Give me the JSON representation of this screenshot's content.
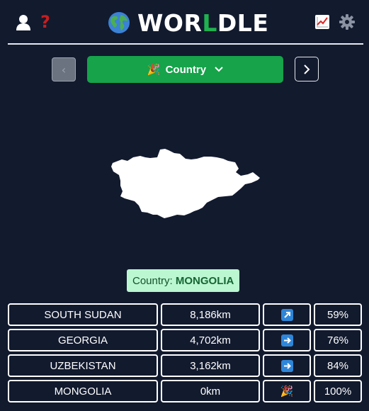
{
  "app": {
    "title_prefix": "WOR",
    "title_accent": "L",
    "title_suffix": "DLE",
    "help_symbol": "?"
  },
  "mode": {
    "label": "Country",
    "prev_symbol": "‹"
  },
  "answer": {
    "prefix": "Country:",
    "value": "MONGOLIA"
  },
  "guesses": [
    {
      "name": "SOUTH SUDAN",
      "distance": "8,186km",
      "direction": "north-east",
      "percent": "59%"
    },
    {
      "name": "GEORGIA",
      "distance": "4,702km",
      "direction": "east",
      "percent": "76%"
    },
    {
      "name": "UZBEKISTAN",
      "distance": "3,162km",
      "direction": "east",
      "percent": "84%"
    },
    {
      "name": "MONGOLIA",
      "distance": "0km",
      "direction": "correct",
      "percent": "100%"
    }
  ],
  "colors": {
    "background": "#121a2e",
    "accent_green": "#16a34a",
    "answer_bg": "#bbf7d0",
    "help_red": "#c81e1e",
    "arrow_blue": "#2e86d9"
  },
  "icons": {
    "user": "user-icon",
    "help": "question-mark-icon",
    "globe": "globe-icon",
    "stats": "stats-chart-icon",
    "settings": "gear-icon",
    "mode": "party-popper-icon",
    "dropdown": "chevron-down-icon",
    "prev": "chevron-left-icon",
    "next": "chevron-right-icon",
    "map": "mongolia-silhouette"
  }
}
